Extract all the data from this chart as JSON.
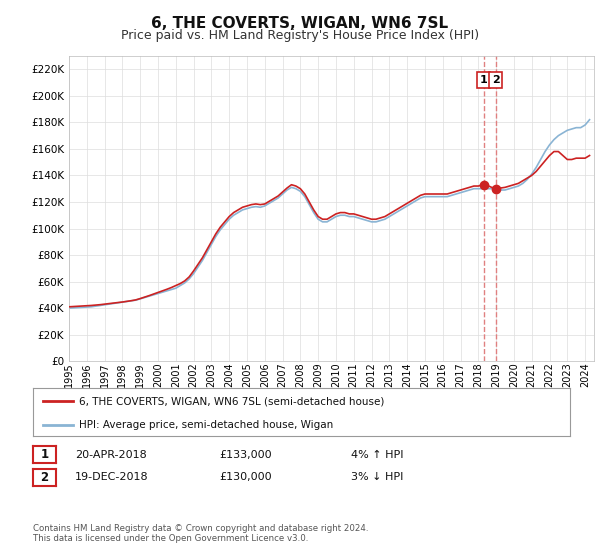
{
  "title": "6, THE COVERTS, WIGAN, WN6 7SL",
  "subtitle": "Price paid vs. HM Land Registry's House Price Index (HPI)",
  "title_fontsize": 11,
  "subtitle_fontsize": 9,
  "ylabel_ticks": [
    0,
    20000,
    40000,
    60000,
    80000,
    100000,
    120000,
    140000,
    160000,
    180000,
    200000,
    220000
  ],
  "ylim": [
    0,
    230000
  ],
  "xlim_start": 1995.0,
  "xlim_end": 2024.5,
  "background_color": "#ffffff",
  "grid_color": "#dddddd",
  "hpi_color": "#8ab4d4",
  "price_color": "#cc2222",
  "transaction1": {
    "date": "20-APR-2018",
    "price": 133000,
    "hpi_diff": "4% ↑ HPI",
    "x": 2018.3
  },
  "transaction2": {
    "date": "19-DEC-2018",
    "price": 130000,
    "hpi_diff": "3% ↓ HPI",
    "x": 2018.97
  },
  "marker_box_color": "#cc2222",
  "dashed_line_color": "#e08080",
  "legend_line1": "6, THE COVERTS, WIGAN, WN6 7SL (semi-detached house)",
  "legend_line2": "HPI: Average price, semi-detached house, Wigan",
  "footnote": "Contains HM Land Registry data © Crown copyright and database right 2024.\nThis data is licensed under the Open Government Licence v3.0.",
  "hpi_data_x": [
    1995.0,
    1995.25,
    1995.5,
    1995.75,
    1996.0,
    1996.25,
    1996.5,
    1996.75,
    1997.0,
    1997.25,
    1997.5,
    1997.75,
    1998.0,
    1998.25,
    1998.5,
    1998.75,
    1999.0,
    1999.25,
    1999.5,
    1999.75,
    2000.0,
    2000.25,
    2000.5,
    2000.75,
    2001.0,
    2001.25,
    2001.5,
    2001.75,
    2002.0,
    2002.25,
    2002.5,
    2002.75,
    2003.0,
    2003.25,
    2003.5,
    2003.75,
    2004.0,
    2004.25,
    2004.5,
    2004.75,
    2005.0,
    2005.25,
    2005.5,
    2005.75,
    2006.0,
    2006.25,
    2006.5,
    2006.75,
    2007.0,
    2007.25,
    2007.5,
    2007.75,
    2008.0,
    2008.25,
    2008.5,
    2008.75,
    2009.0,
    2009.25,
    2009.5,
    2009.75,
    2010.0,
    2010.25,
    2010.5,
    2010.75,
    2011.0,
    2011.25,
    2011.5,
    2011.75,
    2012.0,
    2012.25,
    2012.5,
    2012.75,
    2013.0,
    2013.25,
    2013.5,
    2013.75,
    2014.0,
    2014.25,
    2014.5,
    2014.75,
    2015.0,
    2015.25,
    2015.5,
    2015.75,
    2016.0,
    2016.25,
    2016.5,
    2016.75,
    2017.0,
    2017.25,
    2017.5,
    2017.75,
    2018.0,
    2018.25,
    2018.5,
    2018.75,
    2019.0,
    2019.25,
    2019.5,
    2019.75,
    2020.0,
    2020.25,
    2020.5,
    2020.75,
    2021.0,
    2021.25,
    2021.5,
    2021.75,
    2022.0,
    2022.25,
    2022.5,
    2022.75,
    2023.0,
    2023.25,
    2023.5,
    2023.75,
    2024.0,
    2024.25
  ],
  "hpi_data_y": [
    40000,
    40200,
    40400,
    40600,
    40800,
    41000,
    41500,
    42000,
    42500,
    43000,
    43500,
    44000,
    44500,
    45000,
    45500,
    46000,
    47000,
    48000,
    49000,
    50000,
    51000,
    52000,
    53000,
    54000,
    55000,
    57000,
    59000,
    62000,
    66000,
    71000,
    76000,
    82000,
    88000,
    94000,
    99000,
    103000,
    107000,
    110000,
    112000,
    114000,
    115000,
    116000,
    116500,
    116000,
    117000,
    119000,
    121000,
    123000,
    126000,
    129000,
    131000,
    130000,
    128000,
    124000,
    118000,
    112000,
    107000,
    105000,
    105000,
    107000,
    109000,
    110000,
    110000,
    109000,
    109000,
    108000,
    107000,
    106000,
    105000,
    105000,
    106000,
    107000,
    109000,
    111000,
    113000,
    115000,
    117000,
    119000,
    121000,
    123000,
    124000,
    124000,
    124000,
    124000,
    124000,
    124000,
    125000,
    126000,
    127000,
    128000,
    129000,
    130000,
    130000,
    130000,
    130000,
    130000,
    129000,
    129000,
    129000,
    130000,
    131000,
    132000,
    134000,
    137000,
    141000,
    146000,
    152000,
    158000,
    163000,
    167000,
    170000,
    172000,
    174000,
    175000,
    176000,
    176000,
    178000,
    182000
  ],
  "price_data_x": [
    1995.0,
    1995.25,
    1995.5,
    1995.75,
    1996.0,
    1996.25,
    1996.5,
    1996.75,
    1997.0,
    1997.25,
    1997.5,
    1997.75,
    1998.0,
    1998.25,
    1998.5,
    1998.75,
    1999.0,
    1999.25,
    1999.5,
    1999.75,
    2000.0,
    2000.25,
    2000.5,
    2000.75,
    2001.0,
    2001.25,
    2001.5,
    2001.75,
    2002.0,
    2002.25,
    2002.5,
    2002.75,
    2003.0,
    2003.25,
    2003.5,
    2003.75,
    2004.0,
    2004.25,
    2004.5,
    2004.75,
    2005.0,
    2005.25,
    2005.5,
    2005.75,
    2006.0,
    2006.25,
    2006.5,
    2006.75,
    2007.0,
    2007.25,
    2007.5,
    2007.75,
    2008.0,
    2008.25,
    2008.5,
    2008.75,
    2009.0,
    2009.25,
    2009.5,
    2009.75,
    2010.0,
    2010.25,
    2010.5,
    2010.75,
    2011.0,
    2011.25,
    2011.5,
    2011.75,
    2012.0,
    2012.25,
    2012.5,
    2012.75,
    2013.0,
    2013.25,
    2013.5,
    2013.75,
    2014.0,
    2014.25,
    2014.5,
    2014.75,
    2015.0,
    2015.25,
    2015.5,
    2015.75,
    2016.0,
    2016.25,
    2016.5,
    2016.75,
    2017.0,
    2017.25,
    2017.5,
    2017.75,
    2018.0,
    2018.25,
    2018.5,
    2018.75,
    2019.0,
    2019.25,
    2019.5,
    2019.75,
    2020.0,
    2020.25,
    2020.5,
    2020.75,
    2021.0,
    2021.25,
    2021.5,
    2021.75,
    2022.0,
    2022.25,
    2022.5,
    2022.75,
    2023.0,
    2023.25,
    2023.5,
    2023.75,
    2024.0,
    2024.25
  ],
  "price_data_y": [
    41000,
    41200,
    41400,
    41600,
    41800,
    42000,
    42300,
    42600,
    43000,
    43400,
    43800,
    44200,
    44600,
    45100,
    45600,
    46200,
    47200,
    48300,
    49400,
    50600,
    51800,
    53000,
    54200,
    55500,
    57000,
    58500,
    60500,
    63500,
    68000,
    73000,
    78000,
    84000,
    90000,
    96000,
    101000,
    105000,
    109000,
    112000,
    114000,
    116000,
    117000,
    118000,
    118500,
    118000,
    118500,
    120500,
    122500,
    124500,
    127500,
    130500,
    133000,
    132000,
    130000,
    126000,
    120000,
    114000,
    109000,
    107000,
    107000,
    109000,
    111000,
    112000,
    112000,
    111000,
    111000,
    110000,
    109000,
    108000,
    107000,
    107000,
    108000,
    109000,
    111000,
    113000,
    115000,
    117000,
    119000,
    121000,
    123000,
    125000,
    126000,
    126000,
    126000,
    126000,
    126000,
    126000,
    127000,
    128000,
    129000,
    130000,
    131000,
    132000,
    132000,
    133000,
    132500,
    131000,
    130000,
    130500,
    131000,
    132000,
    133000,
    134000,
    136000,
    138000,
    140000,
    143000,
    147000,
    151000,
    155000,
    158000,
    158000,
    155000,
    152000,
    152000,
    153000,
    153000,
    153000,
    155000
  ]
}
